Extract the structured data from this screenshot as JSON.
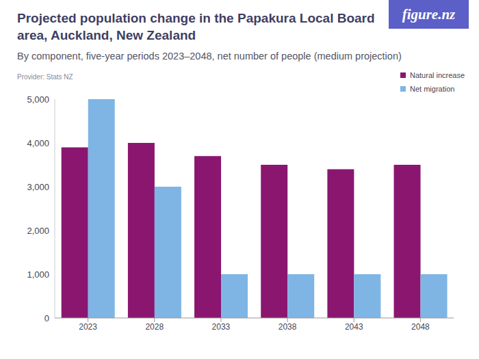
{
  "chart_data": {
    "type": "bar",
    "title": "Projected population change in the Papakura Local Board area, Auckland, New Zealand",
    "subtitle": "By component, five-year periods 2023–2048, net number of people (medium projection)",
    "annotations": [
      "Provider: Stats NZ",
      "figure.nz"
    ],
    "categories": [
      "2023",
      "2028",
      "2033",
      "2038",
      "2043",
      "2048"
    ],
    "series": [
      {
        "name": "Natural increase",
        "color": "#8a1670",
        "values": [
          3900,
          4000,
          3700,
          3500,
          3400,
          3500
        ]
      },
      {
        "name": "Net migration",
        "color": "#7fb5e4",
        "values": [
          5000,
          3000,
          1000,
          1000,
          1000,
          1000
        ]
      }
    ],
    "ylim": [
      0,
      5000
    ],
    "yticks": [
      0,
      {
        "value": 1000,
        "label": "1,000"
      },
      {
        "value": 2000,
        "label": "2,000"
      },
      {
        "value": 3000,
        "label": "3,000"
      },
      {
        "value": 4000,
        "label": "4,000"
      },
      {
        "value": 5000,
        "label": "5,000"
      }
    ],
    "grid": false,
    "legend": "upper right"
  }
}
